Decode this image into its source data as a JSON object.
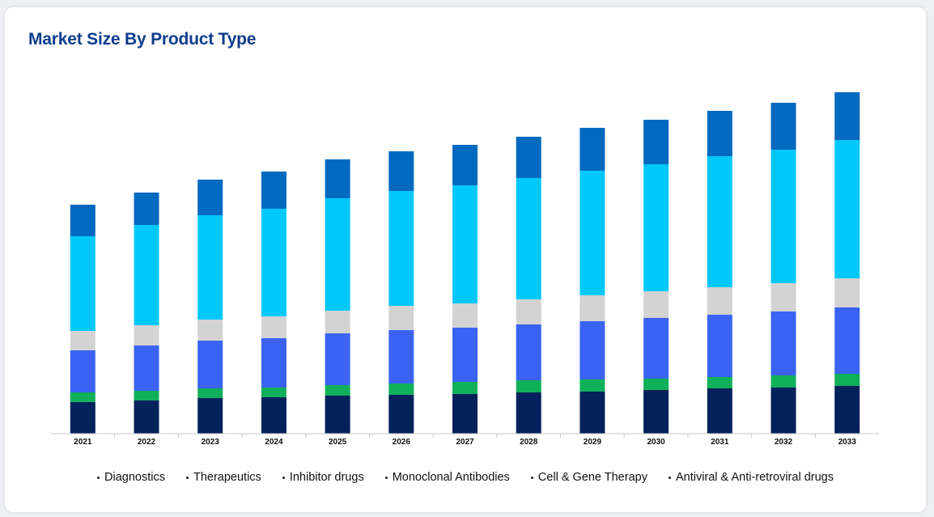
{
  "card": {
    "title": "Market Size By Product Type"
  },
  "chart_data": {
    "type": "bar",
    "stacked": true,
    "title": "Market Size By Product Type",
    "xlabel": "",
    "ylabel": "",
    "ylim": [
      0,
      430
    ],
    "grid": false,
    "legend_position": "bottom",
    "categories": [
      "2021",
      "2022",
      "2023",
      "2024",
      "2025",
      "2026",
      "2027",
      "2028",
      "2029",
      "2030",
      "2031",
      "2032",
      "2033"
    ],
    "series": [
      {
        "name": "Diagnostics",
        "color": "#03215a",
        "values": [
          39,
          41,
          44,
          45,
          47,
          48,
          49,
          51,
          52,
          54,
          56,
          57,
          59
        ]
      },
      {
        "name": "Therapeutics",
        "color": "#11b05a",
        "values": [
          12,
          12,
          12,
          12,
          13,
          14,
          15,
          15,
          15,
          14,
          14,
          15,
          15
        ]
      },
      {
        "name": "Inhibitor drugs",
        "color": "#3a63f3",
        "values": [
          52,
          56,
          59,
          61,
          64,
          66,
          67,
          69,
          72,
          75,
          77,
          79,
          82
        ]
      },
      {
        "name": "Monoclonal Antibodies",
        "color": "#d3d3d3",
        "values": [
          24,
          25,
          26,
          27,
          28,
          30,
          30,
          31,
          32,
          33,
          34,
          35,
          36
        ]
      },
      {
        "name": "Cell & Gene Therapy",
        "color": "#00c8fa",
        "values": [
          117,
          124,
          129,
          133,
          139,
          142,
          146,
          150,
          154,
          157,
          162,
          165,
          171
        ]
      },
      {
        "name": "Antiviral & Anti-retroviral drugs",
        "color": "#0069c0",
        "values": [
          39,
          40,
          44,
          46,
          48,
          49,
          50,
          51,
          53,
          55,
          56,
          58,
          59
        ]
      }
    ]
  }
}
